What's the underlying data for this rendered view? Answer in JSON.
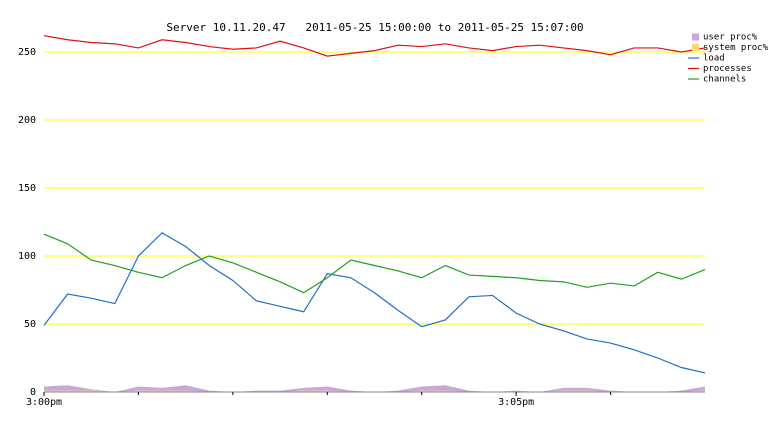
{
  "chart_data": {
    "type": "line",
    "title": "Server 10.11.20.47   2011-05-25 15:00:00 to 2011-05-25 15:07:00",
    "x": [
      0,
      0.25,
      0.5,
      0.75,
      1,
      1.25,
      1.5,
      1.75,
      2,
      2.25,
      2.5,
      2.75,
      3,
      3.25,
      3.5,
      3.75,
      4,
      4.25,
      4.5,
      4.75,
      5,
      5.25,
      5.5,
      5.75,
      6,
      6.25,
      6.5,
      6.75,
      7
    ],
    "xlim": [
      0,
      7
    ],
    "xticks": [
      {
        "value": 0,
        "label": "3:00pm"
      },
      {
        "value": 5,
        "label": "3:05pm"
      }
    ],
    "xminor_ticks": [
      1,
      2,
      3,
      4,
      6
    ],
    "ylim": [
      0,
      265
    ],
    "yticks": [
      0,
      50,
      100,
      150,
      200,
      250
    ],
    "grid": true,
    "grid_color": "#ffff00",
    "legend": "top-right",
    "series": [
      {
        "name": "user proc%",
        "kind": "area",
        "color": "#c8a8d8",
        "values": [
          3,
          4,
          1,
          0,
          3,
          2,
          4,
          1,
          0,
          1,
          1,
          2,
          3,
          1,
          0,
          1,
          3,
          4,
          1,
          0,
          1,
          0,
          2,
          2,
          1,
          0,
          0,
          1,
          3
        ]
      },
      {
        "name": "system proc%",
        "kind": "area",
        "color": "#f8d878",
        "values": [
          1,
          1,
          1,
          0,
          1,
          1,
          1,
          0,
          0,
          0,
          0,
          1,
          1,
          0,
          0,
          0,
          1,
          1,
          0,
          0,
          0,
          0,
          1,
          1,
          0,
          0,
          0,
          0,
          1
        ]
      },
      {
        "name": "load",
        "kind": "line",
        "color": "#1f6fc8",
        "values": [
          49,
          72,
          69,
          65,
          100,
          117,
          107,
          93,
          82,
          67,
          63,
          59,
          87,
          84,
          73,
          60,
          48,
          53,
          70,
          71,
          58,
          50,
          45,
          39,
          36,
          31,
          25,
          18,
          14
        ]
      },
      {
        "name": "processes",
        "kind": "line",
        "color": "#e01010",
        "values": [
          262,
          259,
          257,
          256,
          253,
          259,
          257,
          254,
          252,
          253,
          258,
          253,
          247,
          249,
          251,
          255,
          254,
          256,
          253,
          251,
          254,
          255,
          253,
          251,
          248,
          253,
          253,
          250,
          253
        ]
      },
      {
        "name": "channels",
        "kind": "line",
        "color": "#20a020",
        "values": [
          116,
          109,
          97,
          93,
          88,
          84,
          93,
          100,
          95,
          88,
          81,
          73,
          84,
          97,
          93,
          89,
          84,
          93,
          86,
          85,
          84,
          82,
          81,
          77,
          80,
          78,
          88,
          83,
          90
        ]
      }
    ]
  }
}
